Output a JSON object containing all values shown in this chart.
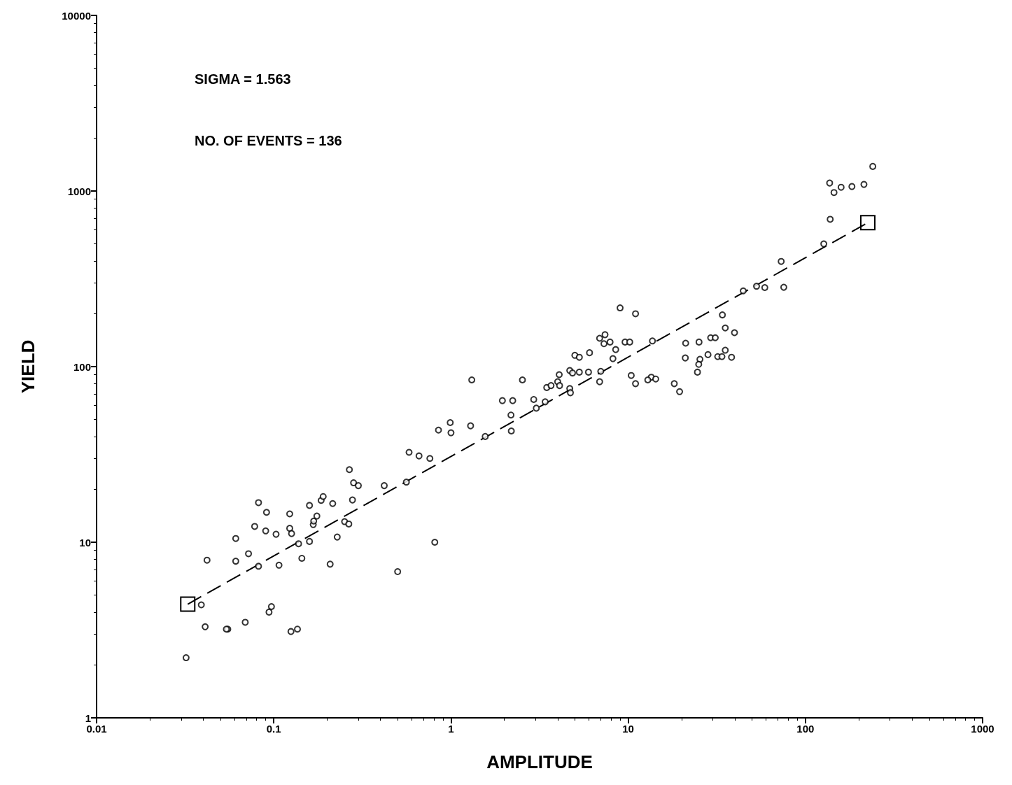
{
  "chart_data": {
    "type": "scatter",
    "xlabel": "AMPLITUDE",
    "ylabel": "YIELD",
    "log": "xy",
    "grid": false,
    "marker": "circle",
    "xlim": [
      0.01,
      1000
    ],
    "xticks": [
      0.01,
      0.1,
      1,
      10,
      100,
      1000
    ],
    "ylim": [
      1,
      10000
    ],
    "yticks": [
      1,
      10,
      100,
      1000,
      10000
    ],
    "annotations": [
      "SIGMA = 1.563",
      "NO. OF EVENTS = 136"
    ],
    "series": [
      {
        "color": "#000000",
        "x": [
          0.032,
          0.039,
          0.041,
          0.042,
          0.055,
          0.054,
          0.061,
          0.061,
          0.069,
          0.072,
          0.078,
          0.082,
          0.082,
          0.09,
          0.091,
          0.094,
          0.097,
          0.103,
          0.107,
          0.123,
          0.123,
          0.125,
          0.126,
          0.136,
          0.138,
          0.144,
          0.159,
          0.159,
          0.167,
          0.168,
          0.175,
          0.185,
          0.19,
          0.208,
          0.215,
          0.228,
          0.251,
          0.265,
          0.267,
          0.278,
          0.282,
          0.3,
          0.42,
          0.5,
          0.56,
          0.58,
          0.66,
          0.76,
          0.81,
          0.85,
          0.99,
          1.0,
          1.29,
          1.31,
          1.56,
          1.95,
          2.23,
          2.53,
          2.93,
          2.18,
          2.19,
          3.4,
          3.03,
          3.47,
          3.67,
          4.0,
          4.1,
          4.08,
          4.68,
          4.68,
          4.72,
          4.85,
          5.3,
          5.0,
          5.3,
          5.97,
          6.05,
          6.9,
          7.0,
          6.9,
          7.4,
          7.3,
          7.9,
          8.5,
          8.2,
          9.0,
          11.0,
          9.6,
          10.2,
          10.4,
          11.0,
          13.5,
          12.9,
          14.3,
          13.7,
          18.2,
          19.5,
          21.1,
          21.0,
          25.1,
          25.4,
          25.0,
          24.6,
          28.2,
          29.2,
          31.0,
          32,
          33.8,
          34,
          35.3,
          35.3,
          38.3,
          39.8,
          44.6,
          53,
          59,
          75.5,
          73,
          127,
          138,
          137,
          145,
          159,
          183,
          214,
          240
        ],
        "values": [
          2.2,
          4.4,
          3.3,
          7.9,
          3.2,
          3.2,
          10.5,
          7.8,
          3.5,
          8.6,
          12.3,
          16.8,
          7.3,
          11.6,
          14.8,
          4.0,
          4.3,
          11.1,
          7.4,
          14.5,
          12.0,
          3.1,
          11.2,
          3.2,
          9.8,
          8.1,
          16.2,
          10.1,
          12.6,
          13.2,
          14.1,
          17.3,
          18.2,
          7.5,
          16.6,
          10.7,
          13.1,
          12.7,
          25.9,
          17.4,
          21.8,
          21.0,
          21.0,
          6.8,
          22,
          32.5,
          31,
          30,
          10,
          43.5,
          48,
          42,
          46,
          84,
          40,
          64,
          64,
          84,
          65,
          53,
          43,
          63,
          58,
          76,
          78,
          82,
          78,
          90,
          95,
          75,
          71,
          92,
          93,
          116,
          113,
          93,
          120,
          82,
          94,
          145,
          152,
          135,
          138,
          125,
          111,
          216,
          200,
          138,
          138,
          89,
          80,
          87,
          84,
          85,
          140,
          80,
          72,
          136,
          112,
          138,
          110,
          103,
          93,
          117,
          146,
          146,
          114,
          114,
          197,
          166,
          124,
          113,
          156,
          270,
          287,
          282,
          283,
          397,
          500,
          690,
          1110,
          980,
          1050,
          1060,
          1090,
          1380
        ]
      },
      {
        "type": "line",
        "color": "#000000",
        "line_style": "dashed",
        "marker": "square",
        "x": [
          0.0327,
          225
        ],
        "values": [
          4.44,
          660
        ]
      }
    ]
  }
}
